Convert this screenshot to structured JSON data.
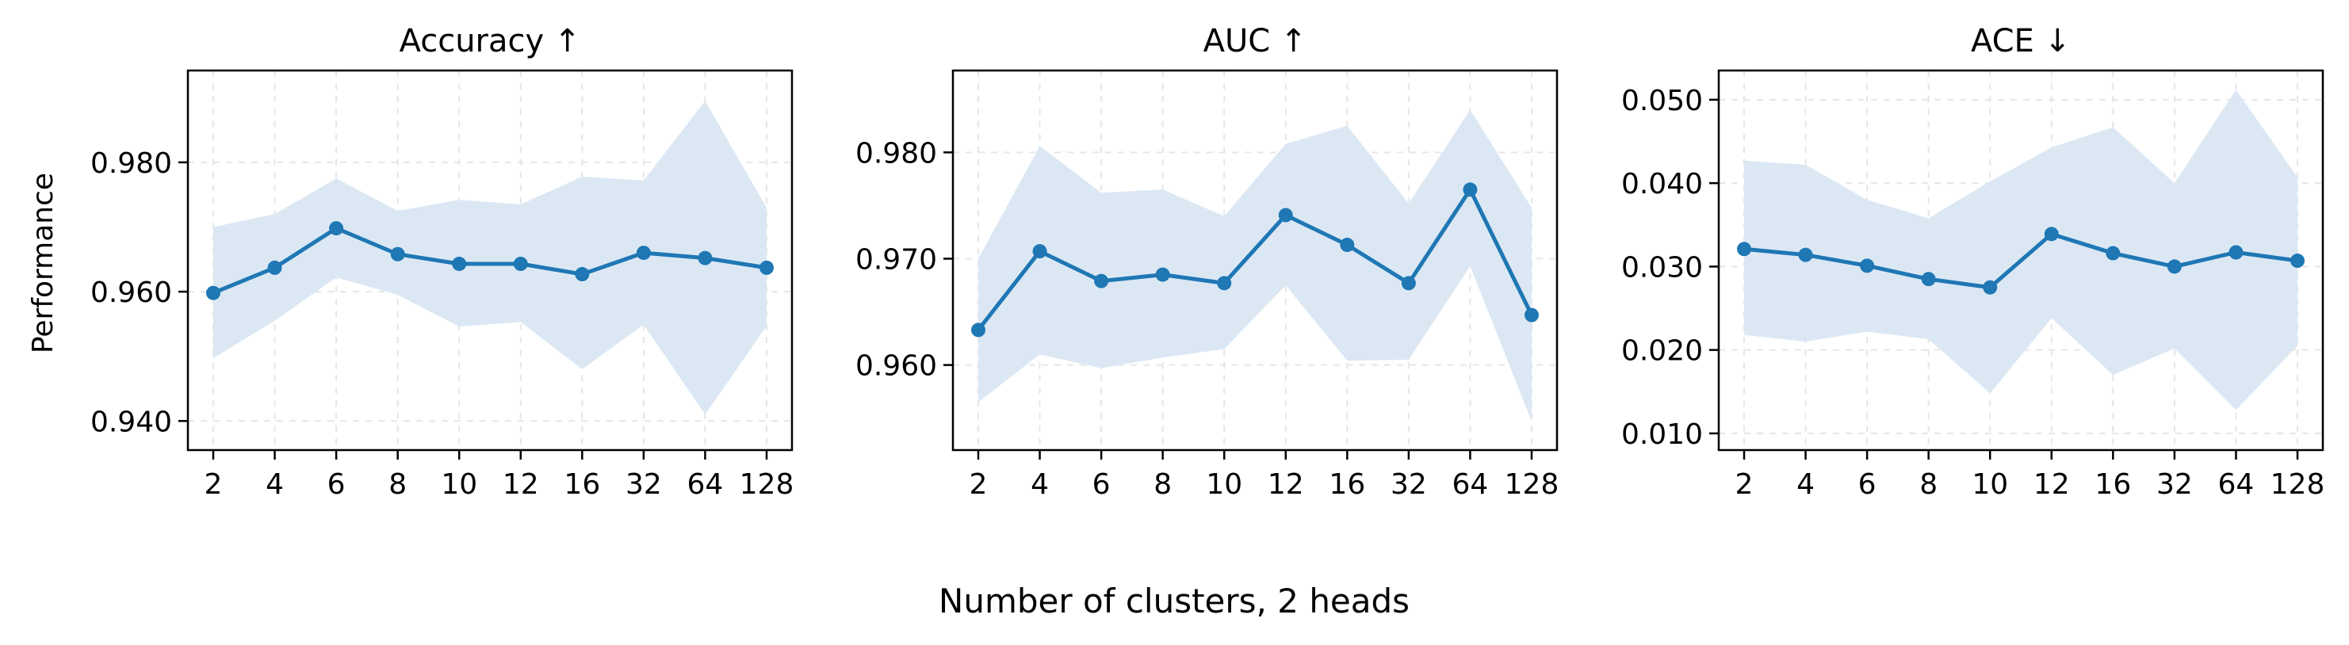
{
  "figure": {
    "xlabel": "Number of clusters, 2 heads",
    "ylabel": "Performance"
  },
  "chart_data": [
    {
      "type": "line",
      "title": "Accuracy ↑",
      "categories": [
        "2",
        "4",
        "6",
        "8",
        "10",
        "12",
        "16",
        "32",
        "64",
        "128"
      ],
      "series": [
        {
          "values": [
            0.9598,
            0.9637,
            0.9698,
            0.9658,
            0.9643,
            0.9643,
            0.9627,
            0.966,
            0.9652,
            0.9637
          ],
          "band_upper": [
            0.97,
            0.972,
            0.9775,
            0.9725,
            0.9742,
            0.9735,
            0.9778,
            0.9772,
            0.9895,
            0.973
          ],
          "band_lower": [
            0.9497,
            0.9555,
            0.9622,
            0.9595,
            0.9546,
            0.9553,
            0.948,
            0.9549,
            0.941,
            0.9547
          ],
          "color": "#1f77b4",
          "band_color": "#dbe8f4"
        }
      ],
      "yticks": [
        0.94,
        0.96,
        0.98
      ],
      "ytick_labels": [
        "0.940",
        "0.960",
        "0.980"
      ],
      "ylim": [
        0.9355,
        0.9942
      ],
      "grid": true,
      "show_ylabel": true
    },
    {
      "type": "line",
      "title": "AUC ↑",
      "categories": [
        "2",
        "4",
        "6",
        "8",
        "10",
        "12",
        "16",
        "32",
        "64",
        "128"
      ],
      "series": [
        {
          "values": [
            0.9633,
            0.9707,
            0.9679,
            0.9685,
            0.9677,
            0.9741,
            0.9713,
            0.9677,
            0.9765,
            0.9647
          ],
          "band_upper": [
            0.97,
            0.9806,
            0.9762,
            0.9765,
            0.974,
            0.9808,
            0.9825,
            0.9752,
            0.984,
            0.9748
          ],
          "band_lower": [
            0.9565,
            0.961,
            0.9597,
            0.9607,
            0.9615,
            0.9675,
            0.9604,
            0.9605,
            0.9693,
            0.9547
          ],
          "color": "#1f77b4",
          "band_color": "#dbe8f4"
        }
      ],
      "yticks": [
        0.96,
        0.97,
        0.98
      ],
      "ytick_labels": [
        "0.960",
        "0.970",
        "0.980"
      ],
      "ylim": [
        0.952,
        0.9877
      ],
      "grid": true,
      "show_ylabel": false
    },
    {
      "type": "line",
      "title": "ACE ↓",
      "categories": [
        "2",
        "4",
        "6",
        "8",
        "10",
        "12",
        "16",
        "32",
        "64",
        "128"
      ],
      "series": [
        {
          "values": [
            0.0321,
            0.0314,
            0.0301,
            0.0285,
            0.0275,
            0.0339,
            0.0316,
            0.03,
            0.0317,
            0.0307
          ],
          "band_upper": [
            0.0427,
            0.0422,
            0.038,
            0.0358,
            0.0402,
            0.0443,
            0.0467,
            0.04,
            0.0512,
            0.0407
          ],
          "band_lower": [
            0.0218,
            0.021,
            0.0222,
            0.0213,
            0.0148,
            0.0238,
            0.017,
            0.0202,
            0.0128,
            0.0205
          ],
          "color": "#1f77b4",
          "band_color": "#dbe8f4"
        }
      ],
      "yticks": [
        0.01,
        0.02,
        0.03,
        0.04,
        0.05
      ],
      "ytick_labels": [
        "0.010",
        "0.020",
        "0.030",
        "0.040",
        "0.050"
      ],
      "ylim": [
        0.008,
        0.0535
      ],
      "grid": true,
      "show_ylabel": false
    }
  ]
}
